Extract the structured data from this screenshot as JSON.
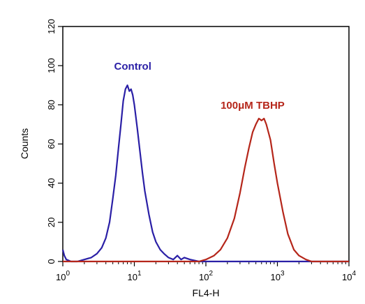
{
  "chart_data": {
    "type": "line",
    "xlabel": "FL4-H",
    "ylabel": "Counts",
    "xscale": "log",
    "xlim": [
      1,
      10000
    ],
    "ylim": [
      0,
      120
    ],
    "x_ticks": [
      {
        "value": 1,
        "base": "10",
        "exp": "0"
      },
      {
        "value": 10,
        "base": "10",
        "exp": "1"
      },
      {
        "value": 100,
        "base": "10",
        "exp": "2"
      },
      {
        "value": 1000,
        "base": "10",
        "exp": "3"
      },
      {
        "value": 10000,
        "base": "10",
        "exp": "4"
      }
    ],
    "y_ticks": [
      "0",
      "20",
      "40",
      "60",
      "80",
      "100",
      "120"
    ],
    "grid": false,
    "series": [
      {
        "name": "Control",
        "color": "#2a1fa6",
        "points": [
          [
            1.0,
            6
          ],
          [
            1.05,
            3
          ],
          [
            1.12,
            1
          ],
          [
            1.3,
            0
          ],
          [
            1.6,
            0
          ],
          [
            2.0,
            1
          ],
          [
            2.5,
            2
          ],
          [
            3.0,
            4
          ],
          [
            3.5,
            7
          ],
          [
            4.0,
            12
          ],
          [
            4.5,
            20
          ],
          [
            5.0,
            32
          ],
          [
            5.5,
            44
          ],
          [
            6.0,
            58
          ],
          [
            6.5,
            70
          ],
          [
            7.0,
            82
          ],
          [
            7.5,
            88
          ],
          [
            8.0,
            90
          ],
          [
            8.5,
            87
          ],
          [
            9.0,
            88
          ],
          [
            9.5,
            85
          ],
          [
            10.0,
            80
          ],
          [
            11,
            68
          ],
          [
            12,
            56
          ],
          [
            13,
            45
          ],
          [
            14,
            36
          ],
          [
            16,
            24
          ],
          [
            18,
            15
          ],
          [
            20,
            10
          ],
          [
            23,
            6
          ],
          [
            26,
            4
          ],
          [
            30,
            2
          ],
          [
            35,
            1
          ],
          [
            40,
            3
          ],
          [
            45,
            1
          ],
          [
            50,
            2
          ],
          [
            60,
            1
          ],
          [
            80,
            0
          ],
          [
            10000,
            0
          ]
        ]
      },
      {
        "name": "100μM TBHP",
        "color": "#b5261a",
        "points": [
          [
            1,
            0
          ],
          [
            60,
            0
          ],
          [
            80,
            0
          ],
          [
            100,
            1
          ],
          [
            130,
            3
          ],
          [
            160,
            6
          ],
          [
            200,
            12
          ],
          [
            250,
            22
          ],
          [
            300,
            35
          ],
          [
            350,
            48
          ],
          [
            400,
            58
          ],
          [
            450,
            66
          ],
          [
            500,
            70
          ],
          [
            550,
            73
          ],
          [
            600,
            72
          ],
          [
            650,
            73
          ],
          [
            700,
            70
          ],
          [
            800,
            62
          ],
          [
            900,
            50
          ],
          [
            1000,
            40
          ],
          [
            1200,
            25
          ],
          [
            1400,
            14
          ],
          [
            1700,
            6
          ],
          [
            2000,
            3
          ],
          [
            2500,
            1
          ],
          [
            3000,
            0
          ],
          [
            10000,
            0
          ]
        ]
      }
    ],
    "annotations": [
      {
        "text": "Control",
        "x": 9.5,
        "y": 98,
        "color": "#2a1fa6"
      },
      {
        "text": "100μM TBHP",
        "x": 450,
        "y": 78,
        "color": "#b5261a"
      }
    ]
  }
}
